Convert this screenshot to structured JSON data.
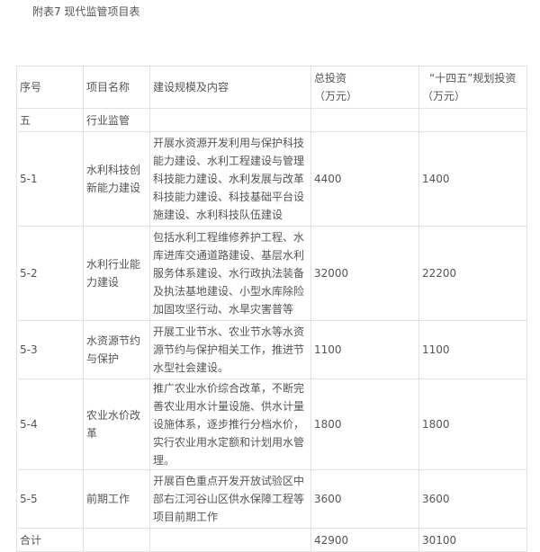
{
  "title": "附表7 现代监管项目表",
  "headers": {
    "seq": "序号",
    "name": "项目名称",
    "content": "建设规模及内容",
    "total_line1": "总投资",
    "total_line2": "（万元）",
    "plan_line1": "“十四五”规划投资",
    "plan_line2": "（万元）"
  },
  "rows": [
    {
      "seq": "五",
      "name": "行业监管",
      "content": "",
      "total": "",
      "plan": ""
    },
    {
      "seq": "5-1",
      "name": "水利科技创新能力建设",
      "content": "开展水资源开发利用与保护科技能力建设、水利工程建设与管理科技能力建设、水利发展与改革科技能力建设、科技基础平台设施建设、水利科技队伍建设",
      "total": "4400",
      "plan": "1400"
    },
    {
      "seq": "5-2",
      "name": "水利行业能力建设",
      "content": "包括水利工程维修养护工程、水库进库交通道路建设、基层水利服务体系建设、水行政执法装备及执法基地建设、小型水库除险加固攻坚行动、水旱灾害普等",
      "total": "32000",
      "plan": "22200"
    },
    {
      "seq": "5-3",
      "name": "水资源节约与保护",
      "content": "开展工业节水、农业节水等水资源节约与保护相关工作，推进节水型社会建设。",
      "total": "1100",
      "plan": "1100"
    },
    {
      "seq": "5-4",
      "name": "农业水价改革",
      "content": "推广农业水价综合改革，不断完善农业用水计量设施、供水计量设施体系，逐步推行分档水价，实行农业用水定额和计划用水管理。",
      "total": "1800",
      "plan": "1800"
    },
    {
      "seq": "5-5",
      "name": "前期工作",
      "content": "开展百色重点开发开放试验区中部右江河谷山区供水保障工程等项目前期工作",
      "total": "3600",
      "plan": "3600"
    },
    {
      "seq": "合计",
      "name": "",
      "content": "",
      "total": "42900",
      "plan": "30100"
    }
  ]
}
